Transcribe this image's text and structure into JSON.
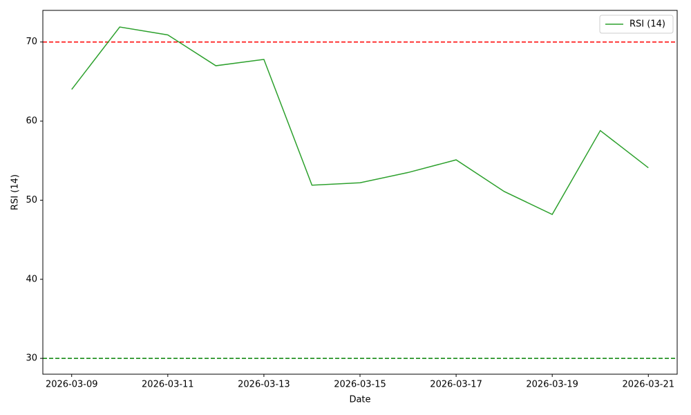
{
  "chart_data": {
    "type": "line",
    "xlabel": "Date",
    "ylabel": "RSI (14)",
    "x": [
      "2026-03-09",
      "2026-03-10",
      "2026-03-11",
      "2026-03-12",
      "2026-03-13",
      "2026-03-14",
      "2026-03-15",
      "2026-03-16",
      "2026-03-17",
      "2026-03-18",
      "2026-03-19",
      "2026-03-20",
      "2026-03-21"
    ],
    "series": [
      {
        "name": "RSI (14)",
        "color": "#2ca02c",
        "values": [
          64.0,
          71.9,
          70.9,
          67.0,
          67.8,
          51.9,
          52.2,
          53.5,
          55.1,
          51.1,
          48.2,
          58.8,
          54.1
        ]
      }
    ],
    "hlines": [
      {
        "value": 70,
        "color": "#ff0000"
      },
      {
        "value": 30,
        "color": "#008000"
      }
    ],
    "xlim": [
      "2026-03-08T09:36",
      "2026-03-21T14:24"
    ],
    "xticks": [
      "2026-03-09",
      "2026-03-11",
      "2026-03-13",
      "2026-03-15",
      "2026-03-17",
      "2026-03-19",
      "2026-03-21"
    ],
    "ylim": [
      28,
      74
    ],
    "yticks": [
      30,
      40,
      50,
      60,
      70
    ],
    "legend": "upper right",
    "grid": false
  }
}
